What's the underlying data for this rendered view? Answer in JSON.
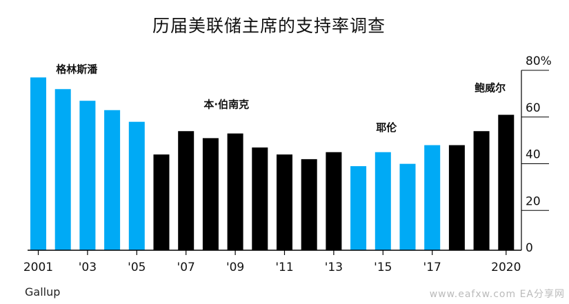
{
  "title": "历届美联储主席的支持率调查",
  "source": "Gallup",
  "watermark": "www.eafxw.com  EA分享网",
  "colors": {
    "blue": "#00aaf5",
    "black": "#000000"
  },
  "chart_data": {
    "type": "bar",
    "categories": [
      "2001",
      "2002",
      "2003",
      "2004",
      "2005",
      "2006",
      "2007",
      "2008",
      "2009",
      "2010",
      "2011",
      "2012",
      "2013",
      "2014",
      "2015",
      "2016",
      "2017",
      "2018",
      "2019",
      "2020"
    ],
    "values": [
      74,
      69,
      64,
      60,
      55,
      41,
      51,
      48,
      50,
      44,
      41,
      39,
      42,
      36,
      42,
      37,
      45,
      45,
      51,
      58
    ],
    "bar_colors": [
      "blue",
      "blue",
      "blue",
      "blue",
      "blue",
      "black",
      "black",
      "black",
      "black",
      "black",
      "black",
      "black",
      "black",
      "blue",
      "blue",
      "blue",
      "blue",
      "black",
      "black",
      "black"
    ],
    "x_tick_labels": [
      "2001",
      "'03",
      "'05",
      "'07",
      "'09",
      "'11",
      "'13",
      "'15",
      "'17",
      "2020"
    ],
    "x_tick_categories": [
      "2001",
      "2003",
      "2005",
      "2007",
      "2009",
      "2011",
      "2013",
      "2015",
      "2017",
      "2020"
    ],
    "y_ticks": [
      "0",
      "20",
      "40",
      "60",
      "80%"
    ],
    "y_tick_values": [
      0,
      20,
      40,
      60,
      80
    ],
    "ylim": [
      0,
      80
    ],
    "grid": false,
    "annotations": [
      {
        "text": "格林斯潘",
        "category": "2002",
        "value": 76
      },
      {
        "text": "本·伯南克",
        "category": "2008",
        "value": 61
      },
      {
        "text": "耶伦",
        "category": "2015",
        "value": 51
      },
      {
        "text": "鲍威尔",
        "category": "2019",
        "value": 68
      }
    ]
  }
}
